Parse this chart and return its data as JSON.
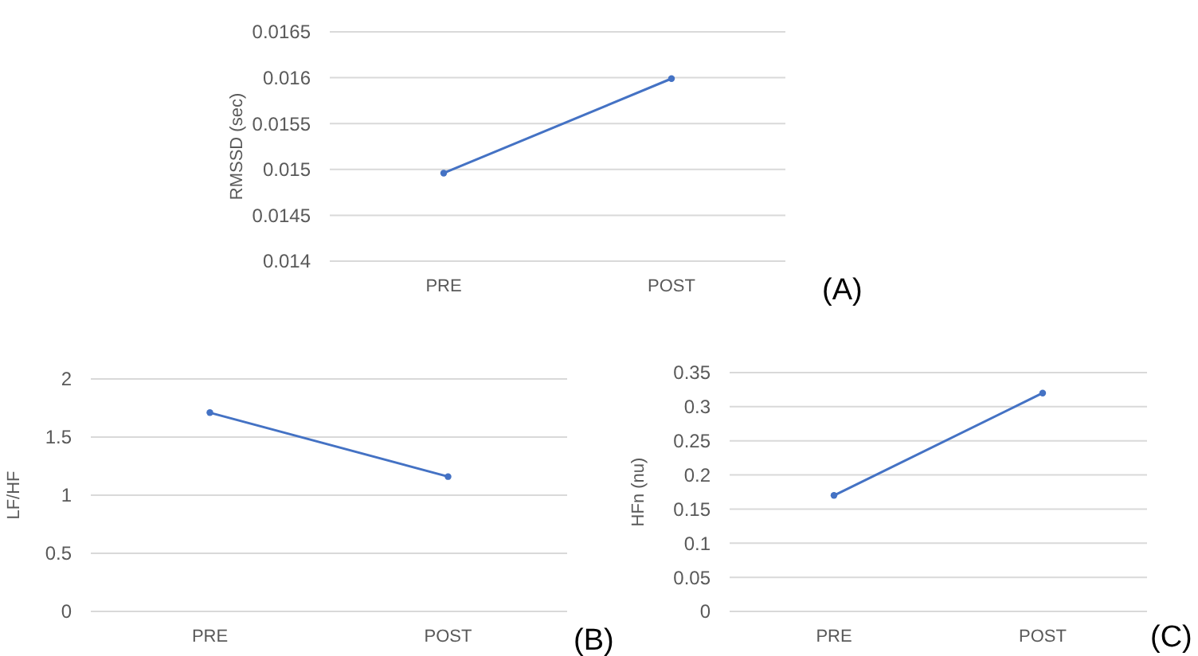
{
  "chart_data": [
    {
      "type": "line",
      "categories": [
        "PRE",
        "POST"
      ],
      "series": [
        {
          "color": "#4472c4",
          "values": [
            0.01496,
            0.01599
          ]
        }
      ],
      "ylabel": "RMSSD (sec)",
      "ylim": [
        0.014,
        0.0165
      ],
      "yticks": [
        0.014,
        0.0145,
        0.015,
        0.0155,
        0.016,
        0.0165
      ],
      "grid": "y",
      "marker": "circle",
      "annotations": [
        "(A)"
      ]
    },
    {
      "type": "line",
      "categories": [
        "PRE",
        "POST"
      ],
      "series": [
        {
          "color": "#4472c4",
          "values": [
            1.71,
            1.16
          ]
        }
      ],
      "ylabel": "LF/HF",
      "ylim": [
        0,
        2
      ],
      "yticks": [
        0,
        0.5,
        1,
        1.5,
        2
      ],
      "grid": "y",
      "marker": "circle",
      "annotations": [
        "(B)"
      ]
    },
    {
      "type": "line",
      "categories": [
        "PRE",
        "POST"
      ],
      "series": [
        {
          "color": "#4472c4",
          "values": [
            0.17,
            0.32
          ]
        }
      ],
      "ylabel": "HFn (nu)",
      "ylim": [
        0,
        0.35
      ],
      "yticks": [
        0,
        0.05,
        0.1,
        0.15,
        0.2,
        0.25,
        0.3,
        0.35
      ],
      "grid": "y",
      "marker": "circle",
      "annotations": [
        "(C)"
      ]
    }
  ]
}
